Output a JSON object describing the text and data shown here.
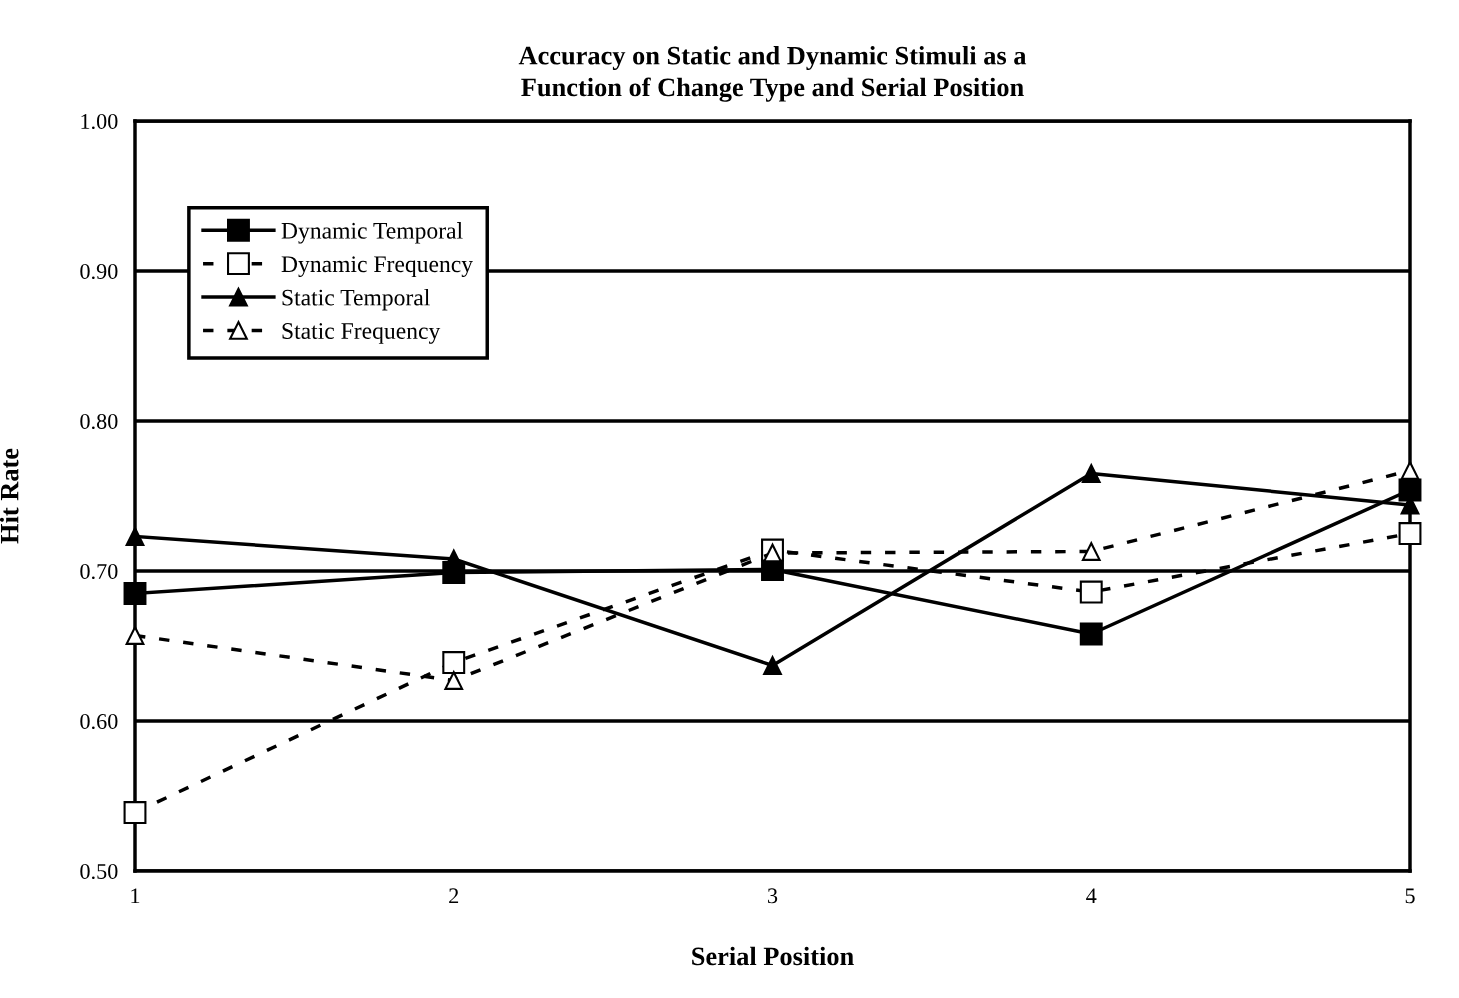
{
  "chart_data": {
    "type": "line",
    "title": "Accuracy on Static and Dynamic Stimuli as a\nFunction of Change Type and Serial Position",
    "xlabel": "Serial Position",
    "ylabel": "Hit Rate",
    "x": [
      1,
      2,
      3,
      4,
      5
    ],
    "xlim": [
      1,
      5
    ],
    "xticks": [
      1,
      2,
      3,
      4,
      5
    ],
    "ylim": [
      0.5,
      1.0
    ],
    "yticks": [
      {
        "value": 0.5,
        "label": "0.50"
      },
      {
        "value": 0.6,
        "label": "0.60"
      },
      {
        "value": 0.7,
        "label": "0.70"
      },
      {
        "value": 0.8,
        "label": "0.80"
      },
      {
        "value": 0.9,
        "label": "0.90"
      },
      {
        "value": 1.0,
        "label": "1.00"
      }
    ],
    "grid": "y",
    "legend": "top left",
    "series": [
      {
        "name": "Dynamic Temporal",
        "color": "#000000",
        "marker": "square",
        "line_style": "solid",
        "values": [
          0.685,
          0.699,
          0.701,
          0.658,
          0.754
        ]
      },
      {
        "name": "Dynamic Frequency",
        "color": "#000000",
        "marker": "square",
        "line_style": "dashed",
        "values": [
          0.539,
          0.639,
          0.714,
          0.686,
          0.725
        ]
      },
      {
        "name": "Static Temporal",
        "color": "#000000",
        "marker": "triangle",
        "line_style": "solid",
        "values": [
          0.723,
          0.708,
          0.637,
          0.765,
          0.744
        ]
      },
      {
        "name": "Static Frequency",
        "color": "#000000",
        "marker": "triangle",
        "line_style": "dashed",
        "values": [
          0.657,
          0.627,
          0.712,
          0.713,
          0.767
        ]
      }
    ]
  }
}
